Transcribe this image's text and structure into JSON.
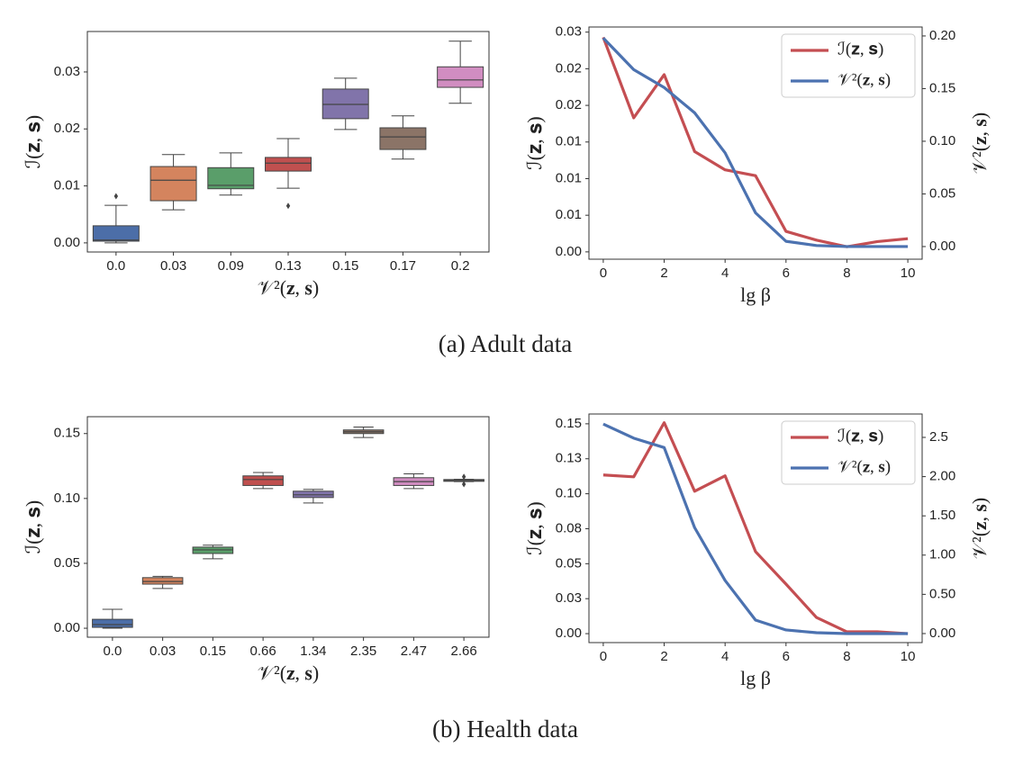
{
  "chart_data": [
    {
      "type": "box",
      "xlabel": "𝒱²(𝐳, 𝐬)",
      "ylabel": "ℐ(𝐳, 𝐬)",
      "categories": [
        "0.0",
        "0.03",
        "0.09",
        "0.13",
        "0.15",
        "0.17",
        "0.2"
      ],
      "colors": [
        "#4c6ea8",
        "#d4845e",
        "#5a9e6a",
        "#c0504f",
        "#8174aa",
        "#8b7467",
        "#d18dc1"
      ],
      "boxes": [
        {
          "whislo": 0.0,
          "q1": 0.0003,
          "med": 0.0005,
          "q3": 0.003,
          "whishi": 0.0066,
          "fliers": [
            0.0082
          ]
        },
        {
          "whislo": 0.0058,
          "q1": 0.0074,
          "med": 0.011,
          "q3": 0.0134,
          "whishi": 0.0155,
          "fliers": []
        },
        {
          "whislo": 0.0084,
          "q1": 0.0095,
          "med": 0.0101,
          "q3": 0.0132,
          "whishi": 0.0158,
          "fliers": []
        },
        {
          "whislo": 0.0096,
          "q1": 0.0126,
          "med": 0.014,
          "q3": 0.015,
          "whishi": 0.0183,
          "fliers": [
            0.0065
          ]
        },
        {
          "whislo": 0.0199,
          "q1": 0.0218,
          "med": 0.0243,
          "q3": 0.027,
          "whishi": 0.0289,
          "fliers": []
        },
        {
          "whislo": 0.0147,
          "q1": 0.0164,
          "med": 0.0186,
          "q3": 0.0202,
          "whishi": 0.0223,
          "fliers": []
        },
        {
          "whislo": 0.0245,
          "q1": 0.0273,
          "med": 0.0286,
          "q3": 0.0309,
          "whishi": 0.0354,
          "fliers": []
        }
      ],
      "ylim": [
        -0.0016,
        0.0371
      ],
      "yticks": [
        {
          "value": 0,
          "label": "0.00"
        },
        0.01,
        0.02,
        0.03
      ]
    },
    {
      "type": "line",
      "xlabel": "lg β",
      "ylabel": "ℐ(𝐳, 𝐬)",
      "y2label": "𝒱²(𝐳, 𝐬)",
      "x": [
        0,
        1,
        2,
        3,
        4,
        5,
        6,
        7,
        8,
        9,
        10
      ],
      "series": [
        {
          "name": "ℐ(𝐳, 𝐬)",
          "color": "#c44e52",
          "values": [
            0.0293,
            0.0183,
            0.0242,
            0.0137,
            0.0112,
            0.0104,
            0.0028,
            0.0016,
            0.0007,
            0.0014,
            0.0018
          ]
        },
        {
          "name": "𝒱²(𝐳, 𝐬)",
          "color": "#4c72b0",
          "axis": "y2",
          "values": [
            0.198,
            0.168,
            0.151,
            0.127,
            0.089,
            0.032,
            0.005,
            0.001,
            0,
            0,
            0
          ]
        }
      ],
      "xlim": [
        -0.47,
        10.47
      ],
      "xticks": [
        0,
        2,
        4,
        6,
        8,
        10
      ],
      "ylim": [
        -0.001,
        0.0307
      ],
      "yticks": [
        {
          "value": 0,
          "label": "0.00"
        },
        {
          "value": 0.005,
          "label": "0.01"
        },
        0.01,
        {
          "value": 0.015,
          "label": "0.01"
        },
        0.02,
        {
          "value": 0.025,
          "label": "0.02"
        },
        0.03
      ],
      "y2lim": [
        -0.012,
        0.2085
      ],
      "y2ticks": [
        {
          "value": 0,
          "label": "0.00"
        },
        0.05,
        {
          "value": 0.1,
          "label": "0.10"
        },
        0.15,
        {
          "value": 0.2,
          "label": "0.20"
        }
      ],
      "legend": "upper right"
    },
    {
      "type": "box",
      "xlabel": "𝒱²(𝐳, 𝐬)",
      "ylabel": "ℐ(𝐳, 𝐬)",
      "categories": [
        "0.0",
        "0.03",
        "0.15",
        "0.66",
        "1.34",
        "2.35",
        "2.47",
        "2.66"
      ],
      "colors": [
        "#4c6ea8",
        "#d4845e",
        "#5a9e6a",
        "#c0504f",
        "#8174aa",
        "#8b7467",
        "#d18dc1",
        "#8c8c8c"
      ],
      "boxes": [
        {
          "whislo": 0.0,
          "q1": 0.0007,
          "med": 0.0028,
          "q3": 0.0069,
          "whishi": 0.0146,
          "fliers": []
        },
        {
          "whislo": 0.0306,
          "q1": 0.034,
          "med": 0.036,
          "q3": 0.039,
          "whishi": 0.04,
          "fliers": []
        },
        {
          "whislo": 0.0535,
          "q1": 0.0576,
          "med": 0.0604,
          "q3": 0.0625,
          "whishi": 0.064,
          "fliers": []
        },
        {
          "whislo": 0.1076,
          "q1": 0.11,
          "med": 0.1146,
          "q3": 0.1174,
          "whishi": 0.12,
          "fliers": []
        },
        {
          "whislo": 0.0965,
          "q1": 0.1007,
          "med": 0.1028,
          "q3": 0.1056,
          "whishi": 0.107,
          "fliers": []
        },
        {
          "whislo": 0.147,
          "q1": 0.15,
          "med": 0.1514,
          "q3": 0.1528,
          "whishi": 0.155,
          "fliers": []
        },
        {
          "whislo": 0.1076,
          "q1": 0.11,
          "med": 0.113,
          "q3": 0.116,
          "whishi": 0.119,
          "fliers": []
        },
        {
          "whislo": 0.113,
          "q1": 0.1132,
          "med": 0.1139,
          "q3": 0.1146,
          "whishi": 0.1148,
          "fliers": [
            0.1167,
            0.111
          ]
        }
      ],
      "ylim": [
        -0.0069,
        0.163
      ],
      "yticks": [
        {
          "value": 0,
          "label": "0.00"
        },
        0.05,
        {
          "value": 0.1,
          "label": "0.10"
        },
        0.15
      ]
    },
    {
      "type": "line",
      "xlabel": "lg β",
      "ylabel": "ℐ(𝐳, 𝐬)",
      "y2label": "𝒱²(𝐳, 𝐬)",
      "x": [
        0,
        1,
        2,
        3,
        4,
        5,
        6,
        7,
        8,
        9,
        10
      ],
      "series": [
        {
          "name": "ℐ(𝐳, 𝐬)",
          "color": "#c44e52",
          "values": [
            0.1134,
            0.1121,
            0.1508,
            0.1018,
            0.1128,
            0.0586,
            0.0354,
            0.0116,
            0.0013,
            0.0013,
            0
          ]
        },
        {
          "name": "𝒱²(𝐳, 𝐬)",
          "color": "#4c72b0",
          "axis": "y2",
          "values": [
            2.67,
            2.49,
            2.37,
            1.35,
            0.677,
            0.172,
            0.046,
            0.011,
            0,
            0,
            0
          ]
        }
      ],
      "xlim": [
        -0.47,
        10.47
      ],
      "xticks": [
        0,
        2,
        4,
        6,
        8,
        10
      ],
      "ylim": [
        -0.0064,
        0.157
      ],
      "yticks": [
        {
          "value": 0,
          "label": "0.00"
        },
        {
          "value": 0.025,
          "label": "0.03"
        },
        0.05,
        {
          "value": 0.075,
          "label": "0.08"
        },
        {
          "value": 0.1,
          "label": "0.10"
        },
        {
          "value": 0.125,
          "label": "0.13"
        },
        0.15
      ],
      "y2lim": [
        -0.115,
        2.798
      ],
      "y2ticks": [
        {
          "value": 0,
          "label": "0.00"
        },
        {
          "value": 0.5,
          "label": "0.50"
        },
        {
          "value": 1,
          "label": "1.00"
        },
        {
          "value": 1.5,
          "label": "1.50"
        },
        {
          "value": 2,
          "label": "2.00"
        },
        2.5
      ],
      "legend": "upper right"
    }
  ],
  "captions": [
    "(a)  Adult data",
    "(b)  Health data"
  ]
}
